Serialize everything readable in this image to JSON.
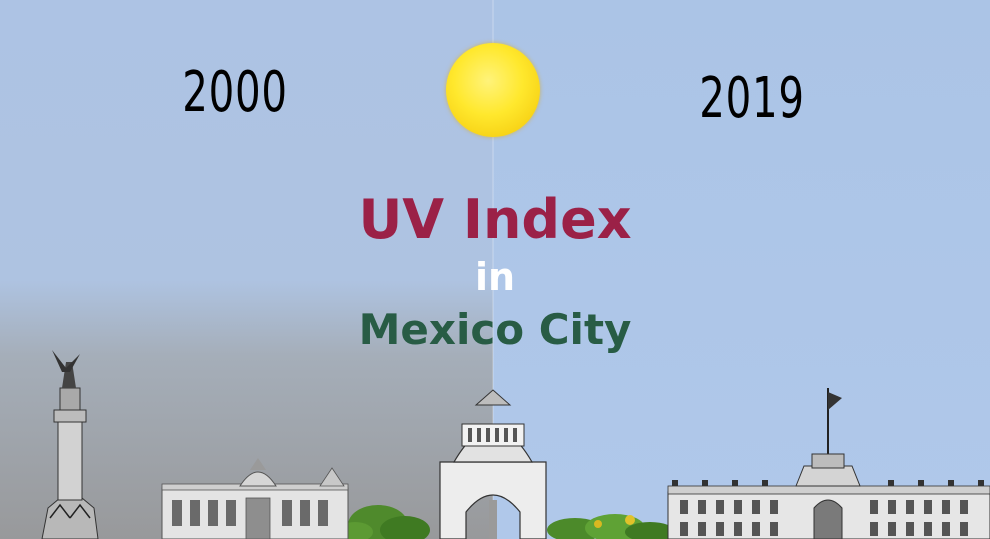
{
  "years": {
    "left": "2000",
    "right": "2019"
  },
  "title": {
    "line1": "UV Index",
    "line2": "in",
    "line3": "Mexico City"
  },
  "colors": {
    "title_line1": "#9b2147",
    "title_line2": "#ffffff",
    "title_line3": "#285c45",
    "sun": "#ffe82d",
    "sky_clear": "#afc6e7",
    "sky_hazy": "#98999b"
  },
  "illustrations": [
    "angel-of-independence-monument",
    "palace-of-fine-arts",
    "monument-to-the-revolution",
    "national-palace",
    "trees"
  ]
}
